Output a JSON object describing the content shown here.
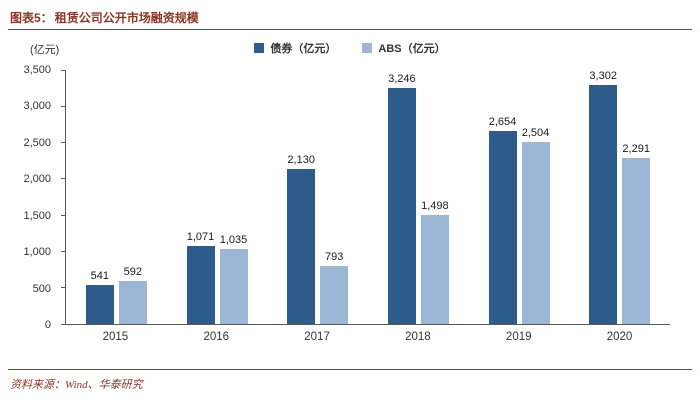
{
  "header": {
    "fig_label": "图表5：",
    "title": "租赁公司公开市场融资规模"
  },
  "axis_unit": "(亿元)",
  "colors": {
    "accent_rule": "#953735",
    "title_text": "#8B3626",
    "series": [
      "#2E5C8A",
      "#9CB6D6"
    ]
  },
  "footer": {
    "source": "资料来源：Wind、华泰研究"
  },
  "chart_data": {
    "type": "bar",
    "title": "租赁公司公开市场融资规模",
    "categories": [
      "2015",
      "2016",
      "2017",
      "2018",
      "2019",
      "2020"
    ],
    "series": [
      {
        "name": "债券（亿元）",
        "values": [
          541,
          1071,
          2130,
          3246,
          2654,
          3302
        ]
      },
      {
        "name": "ABS（亿元）",
        "values": [
          592,
          1035,
          793,
          1498,
          2504,
          2291
        ]
      }
    ],
    "xlabel": "",
    "ylabel": "(亿元)",
    "ylim": [
      0,
      3500
    ],
    "yticks": [
      0,
      500,
      1000,
      1500,
      2000,
      2500,
      3000,
      3500
    ],
    "grid": false,
    "legend_position": "top-center",
    "data_labels": true
  }
}
